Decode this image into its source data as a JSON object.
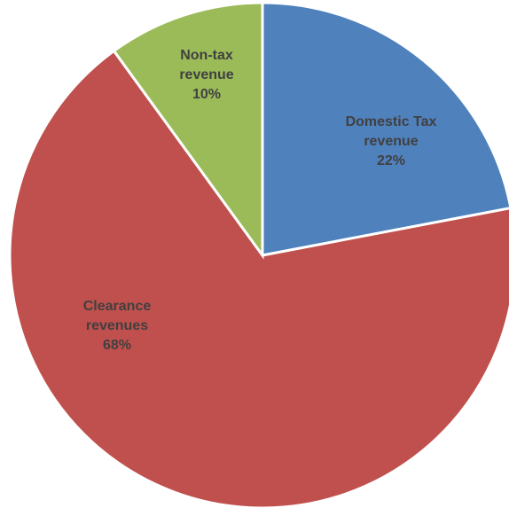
{
  "chart_data": {
    "type": "pie",
    "categories": [
      "Domestic Tax revenue",
      "Clearance revenues",
      "Non-tax revenue"
    ],
    "values": [
      22,
      68,
      10
    ],
    "value_labels": [
      "22%",
      "68%",
      "10%"
    ],
    "colors": [
      "#4f81bd",
      "#c0504d",
      "#9bbb59"
    ]
  }
}
